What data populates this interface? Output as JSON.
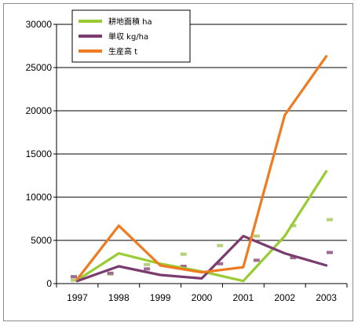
{
  "chart_data": {
    "type": "line",
    "title": "",
    "xlabel": "",
    "ylabel": "",
    "categories": [
      "1997",
      "1998",
      "1999",
      "2000",
      "2001",
      "2002",
      "2003"
    ],
    "ylim": [
      0,
      30000
    ],
    "yticks": [
      0,
      5000,
      10000,
      15000,
      20000,
      25000,
      30000
    ],
    "ytick_labels": [
      "0",
      "5000",
      "10000",
      "15000",
      "20000",
      "25000",
      "30000"
    ],
    "grid": "horizontal",
    "legend_position": "top-left",
    "series": [
      {
        "name": "耕地面積 ha",
        "color": "#99cc33",
        "values": [
          400,
          3500,
          2300,
          1400,
          300,
          5500,
          13000
        ]
      },
      {
        "name": "単収 kg/ha",
        "color": "#7a3b6e",
        "values": [
          300,
          2000,
          1000,
          600,
          5500,
          3500,
          2100
        ]
      },
      {
        "name": "生産高 t",
        "color": "#ee7b22",
        "values": [
          500,
          6700,
          2100,
          1300,
          1900,
          19500,
          26300
        ]
      }
    ],
    "trend_marks": [
      {
        "series": "耕地面積 ha",
        "color": "#b5cf7a",
        "values": [
          400,
          1100,
          2200,
          3400,
          4400,
          5500,
          6700,
          7400
        ]
      },
      {
        "series": "単収 kg/ha",
        "color": "#9c6a92",
        "values": [
          800,
          1200,
          1700,
          2000,
          2300,
          2700,
          3000,
          3600
        ]
      }
    ]
  }
}
